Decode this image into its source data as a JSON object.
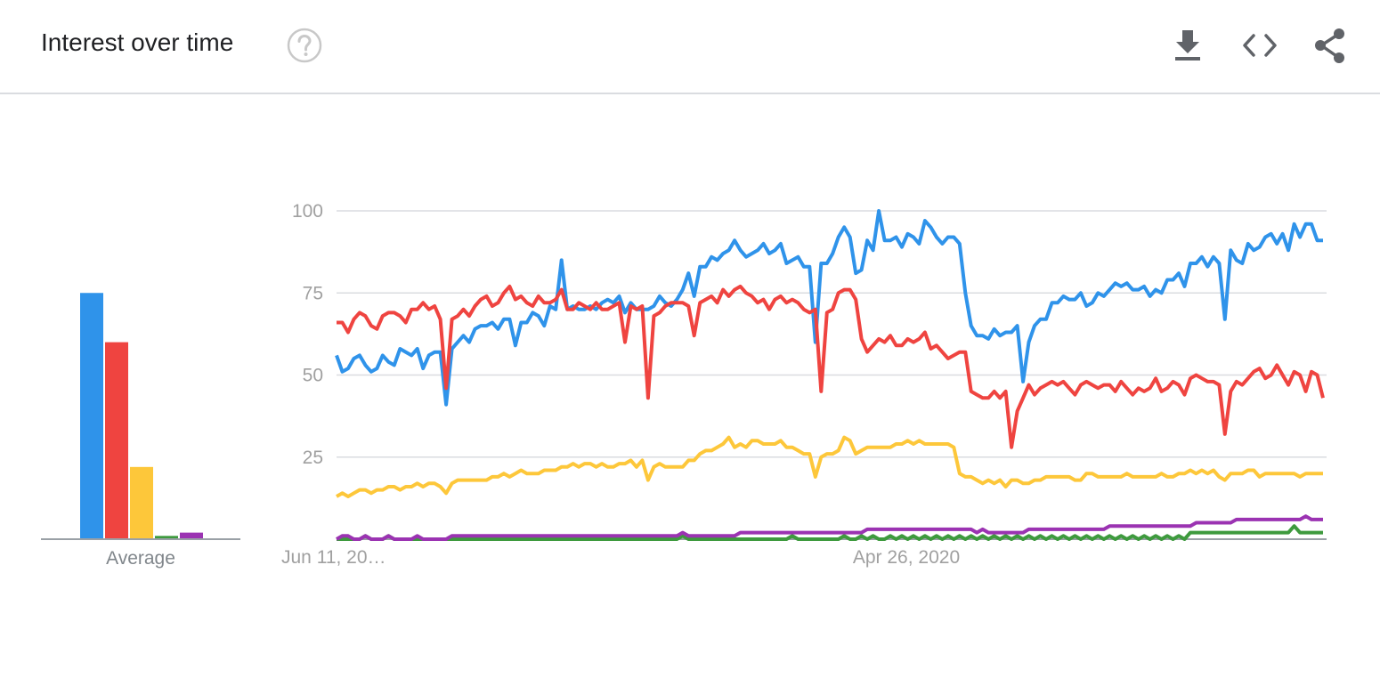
{
  "header": {
    "title": "Interest over time",
    "help_icon": "help-circle-icon",
    "actions": [
      {
        "icon": "download-icon"
      },
      {
        "icon": "embed-code-icon"
      },
      {
        "icon": "share-icon"
      }
    ]
  },
  "colors": {
    "series1": "#2f93ea",
    "series2": "#ef4440",
    "series3": "#fdc73a",
    "series4": "#3e9a3e",
    "series5": "#9b33b2",
    "grid": "#dadce0",
    "axis": "#9aa0a6"
  },
  "chart_data": {
    "type": "line",
    "ylim": [
      0,
      100
    ],
    "yticks": [
      "100",
      "75",
      "50",
      "25"
    ],
    "xtick_labels": [
      "Jun 11, 20…",
      "Apr 26, 2020"
    ],
    "grid": true,
    "average_label": "Average",
    "averages": [
      75,
      60,
      22,
      1,
      2
    ],
    "series": [
      {
        "color": "#2f93ea",
        "values": [
          56,
          51,
          52,
          55,
          56,
          53,
          51,
          52,
          56,
          54,
          53,
          58,
          57,
          56,
          58,
          52,
          56,
          57,
          57,
          41,
          58,
          60,
          62,
          60,
          64,
          65,
          65,
          66,
          64,
          67,
          67,
          59,
          66,
          66,
          69,
          68,
          65,
          71,
          70,
          85,
          70,
          71,
          70,
          70,
          71,
          70,
          72,
          73,
          72,
          74,
          69,
          72,
          70,
          70,
          70,
          71,
          74,
          72,
          71,
          73,
          76,
          81,
          74,
          83,
          83,
          86,
          85,
          87,
          88,
          91,
          88,
          86,
          87,
          88,
          90,
          87,
          88,
          90,
          84,
          85,
          86,
          83,
          83,
          60,
          84,
          84,
          87,
          92,
          95,
          92,
          81,
          82,
          91,
          88,
          100,
          91,
          91,
          92,
          89,
          93,
          92,
          90,
          97,
          95,
          92,
          90,
          92,
          92,
          90,
          75,
          65,
          62,
          62,
          61,
          64,
          62,
          63,
          63,
          65,
          48,
          60,
          65,
          67,
          67,
          72,
          72,
          74,
          73,
          73,
          75,
          71,
          72,
          75,
          74,
          76,
          78,
          77,
          78,
          76,
          76,
          77,
          74,
          76,
          75,
          79,
          79,
          81,
          77,
          84,
          84,
          86,
          83,
          86,
          84,
          67,
          88,
          85,
          84,
          90,
          88,
          89,
          92,
          93,
          90,
          93,
          88,
          96,
          92,
          96,
          96,
          91,
          91
        ]
      },
      {
        "color": "#ef4440",
        "values": [
          66,
          66,
          63,
          67,
          69,
          68,
          65,
          64,
          68,
          69,
          69,
          68,
          66,
          70,
          70,
          72,
          70,
          71,
          67,
          46,
          67,
          68,
          70,
          68,
          71,
          73,
          74,
          71,
          72,
          75,
          77,
          73,
          74,
          72,
          71,
          74,
          72,
          72,
          73,
          76,
          70,
          70,
          72,
          71,
          70,
          72,
          70,
          70,
          71,
          72,
          60,
          71,
          70,
          71,
          43,
          68,
          69,
          71,
          72,
          72,
          72,
          71,
          62,
          72,
          73,
          74,
          72,
          76,
          74,
          76,
          77,
          75,
          74,
          72,
          73,
          70,
          73,
          74,
          72,
          73,
          72,
          70,
          69,
          70,
          45,
          69,
          70,
          75,
          76,
          76,
          73,
          61,
          57,
          59,
          61,
          60,
          62,
          59,
          59,
          61,
          60,
          61,
          63,
          58,
          59,
          57,
          55,
          56,
          57,
          57,
          45,
          44,
          43,
          43,
          45,
          43,
          45,
          28,
          39,
          43,
          47,
          44,
          46,
          47,
          48,
          47,
          48,
          46,
          44,
          47,
          48,
          47,
          46,
          47,
          47,
          45,
          48,
          46,
          44,
          46,
          45,
          46,
          49,
          45,
          46,
          48,
          47,
          44,
          49,
          50,
          49,
          48,
          48,
          47,
          32,
          45,
          48,
          47,
          49,
          51,
          52,
          49,
          50,
          53,
          50,
          47,
          51,
          50,
          45,
          51,
          50,
          43
        ]
      },
      {
        "color": "#fdc73a",
        "values": [
          13,
          14,
          13,
          14,
          15,
          15,
          14,
          15,
          15,
          16,
          16,
          15,
          16,
          16,
          17,
          16,
          17,
          17,
          16,
          14,
          17,
          18,
          18,
          18,
          18,
          18,
          18,
          19,
          19,
          20,
          19,
          20,
          21,
          20,
          20,
          20,
          21,
          21,
          21,
          22,
          22,
          23,
          22,
          23,
          23,
          22,
          23,
          22,
          22,
          23,
          23,
          24,
          22,
          24,
          18,
          22,
          23,
          22,
          22,
          22,
          22,
          24,
          24,
          26,
          27,
          27,
          28,
          29,
          31,
          28,
          29,
          28,
          30,
          30,
          29,
          29,
          29,
          30,
          28,
          28,
          27,
          26,
          26,
          19,
          25,
          26,
          26,
          27,
          31,
          30,
          26,
          27,
          28,
          28,
          28,
          28,
          28,
          29,
          29,
          30,
          29,
          30,
          29,
          29,
          29,
          29,
          29,
          28,
          20,
          19,
          19,
          18,
          17,
          18,
          17,
          18,
          16,
          18,
          18,
          17,
          17,
          18,
          18,
          19,
          19,
          19,
          19,
          19,
          18,
          18,
          20,
          20,
          19,
          19,
          19,
          19,
          19,
          20,
          19,
          19,
          19,
          19,
          19,
          20,
          19,
          19,
          20,
          20,
          21,
          20,
          21,
          20,
          21,
          19,
          18,
          20,
          20,
          20,
          21,
          21,
          19,
          20,
          20,
          20,
          20,
          20,
          20,
          19,
          20,
          20,
          20,
          20
        ]
      },
      {
        "color": "#3e9a3e",
        "values": [
          0,
          0,
          0,
          0,
          0,
          1,
          0,
          0,
          0,
          1,
          0,
          0,
          0,
          0,
          0,
          0,
          0,
          0,
          0,
          0,
          0,
          0,
          0,
          0,
          0,
          0,
          0,
          0,
          0,
          0,
          0,
          0,
          0,
          0,
          0,
          0,
          0,
          0,
          0,
          0,
          0,
          0,
          0,
          0,
          0,
          0,
          0,
          0,
          0,
          0,
          0,
          0,
          0,
          0,
          0,
          0,
          0,
          0,
          0,
          0,
          1,
          0,
          0,
          0,
          0,
          0,
          0,
          0,
          0,
          0,
          0,
          0,
          0,
          0,
          0,
          0,
          0,
          0,
          0,
          1,
          0,
          0,
          0,
          0,
          0,
          0,
          0,
          0,
          1,
          0,
          0,
          1,
          0,
          1,
          0,
          0,
          1,
          0,
          1,
          0,
          1,
          0,
          1,
          0,
          1,
          0,
          1,
          0,
          1,
          0,
          1,
          0,
          1,
          0,
          1,
          0,
          1,
          0,
          1,
          0,
          1,
          0,
          1,
          0,
          1,
          0,
          1,
          0,
          1,
          0,
          1,
          0,
          1,
          0,
          1,
          0,
          1,
          0,
          1,
          0,
          1,
          0,
          1,
          0,
          1,
          0,
          1,
          0,
          2,
          2,
          2,
          2,
          2,
          2,
          2,
          2,
          2,
          2,
          2,
          2,
          2,
          2,
          2,
          2,
          2,
          2,
          4,
          2,
          2,
          2,
          2,
          2
        ]
      },
      {
        "color": "#9b33b2",
        "values": [
          0,
          1,
          1,
          0,
          0,
          1,
          0,
          0,
          0,
          1,
          0,
          0,
          0,
          0,
          1,
          0,
          0,
          0,
          0,
          0,
          1,
          1,
          1,
          1,
          1,
          1,
          1,
          1,
          1,
          1,
          1,
          1,
          1,
          1,
          1,
          1,
          1,
          1,
          1,
          1,
          1,
          1,
          1,
          1,
          1,
          1,
          1,
          1,
          1,
          1,
          1,
          1,
          1,
          1,
          1,
          1,
          1,
          1,
          1,
          1,
          2,
          1,
          1,
          1,
          1,
          1,
          1,
          1,
          1,
          1,
          2,
          2,
          2,
          2,
          2,
          2,
          2,
          2,
          2,
          2,
          2,
          2,
          2,
          2,
          2,
          2,
          2,
          2,
          2,
          2,
          2,
          2,
          3,
          3,
          3,
          3,
          3,
          3,
          3,
          3,
          3,
          3,
          3,
          3,
          3,
          3,
          3,
          3,
          3,
          3,
          3,
          2,
          3,
          2,
          2,
          2,
          2,
          2,
          2,
          2,
          3,
          3,
          3,
          3,
          3,
          3,
          3,
          3,
          3,
          3,
          3,
          3,
          3,
          3,
          4,
          4,
          4,
          4,
          4,
          4,
          4,
          4,
          4,
          4,
          4,
          4,
          4,
          4,
          4,
          5,
          5,
          5,
          5,
          5,
          5,
          5,
          6,
          6,
          6,
          6,
          6,
          6,
          6,
          6,
          6,
          6,
          6,
          6,
          7,
          6,
          6,
          6
        ]
      }
    ]
  }
}
